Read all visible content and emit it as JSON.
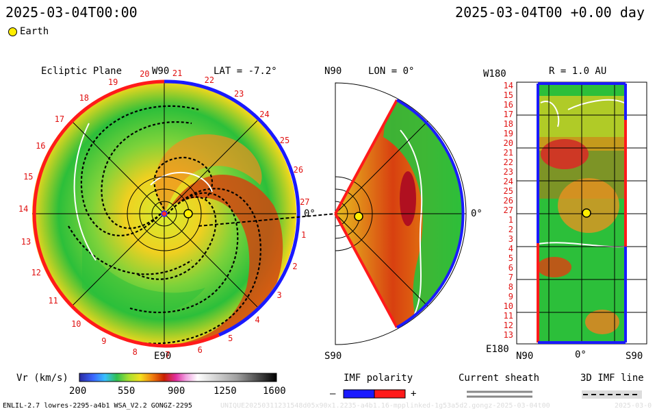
{
  "header": {
    "timestamp_left": "2025-03-04T00:00",
    "timestamp_right": "2025-03-04T00 +0.00 day"
  },
  "legend": {
    "earth_label": "Earth"
  },
  "ecliptic": {
    "title": "Ecliptic Plane",
    "top_label": "W90",
    "bottom_label": "E90",
    "lat_label": "LAT = -7.2°",
    "zero_label": "0°",
    "carrington_numbers": [
      "20",
      "21",
      "22",
      "23",
      "24",
      "25",
      "26",
      "27",
      "1",
      "2",
      "3",
      "4",
      "5",
      "6",
      "7",
      "8",
      "9",
      "10",
      "11",
      "12",
      "13",
      "14",
      "15",
      "16",
      "17",
      "18",
      "19"
    ]
  },
  "meridional": {
    "top_label": "N90",
    "bottom_label": "S90",
    "lon_label": "LON = 0°",
    "zero_label": "0°"
  },
  "radial": {
    "top_left_label": "W180",
    "bottom_left_label": "E180",
    "title": "R = 1.0 AU",
    "x_labels": [
      "N90",
      "0°",
      "S90"
    ],
    "y_numbers": [
      "14",
      "15",
      "16",
      "17",
      "18",
      "19",
      "20",
      "21",
      "22",
      "23",
      "24",
      "25",
      "26",
      "27",
      "1",
      "2",
      "3",
      "4",
      "5",
      "6",
      "7",
      "8",
      "9",
      "10",
      "11",
      "12",
      "13"
    ]
  },
  "colorbar": {
    "title": "Vr (km/s)",
    "ticks": [
      "200",
      "550",
      "900",
      "1250",
      "1600"
    ],
    "min": 200,
    "max": 1600
  },
  "imf_polarity": {
    "title": "IMF polarity",
    "minus": "–",
    "plus": "+"
  },
  "current_sheath": {
    "title": "Current sheath"
  },
  "imf_line": {
    "title": "3D IMF line"
  },
  "footer": {
    "model_info": "ENLIL-2.7 lowres-2295-a4b1 WSA_V2.2 GONGZ-2295",
    "run_id": "UNIQUE20250311231548d05x90x1.2235-a4b1.16-mpplinked-1g53a5d2.gongz-2025-03-04t00",
    "date_fragment": "2025-03-0"
  },
  "colors": {
    "ring_red": "#ff1a1a",
    "ring_blue": "#1a1aff",
    "earth": "#ffee00",
    "slow_wind": "#22bb33",
    "fast_wind": "#cc3300"
  }
}
